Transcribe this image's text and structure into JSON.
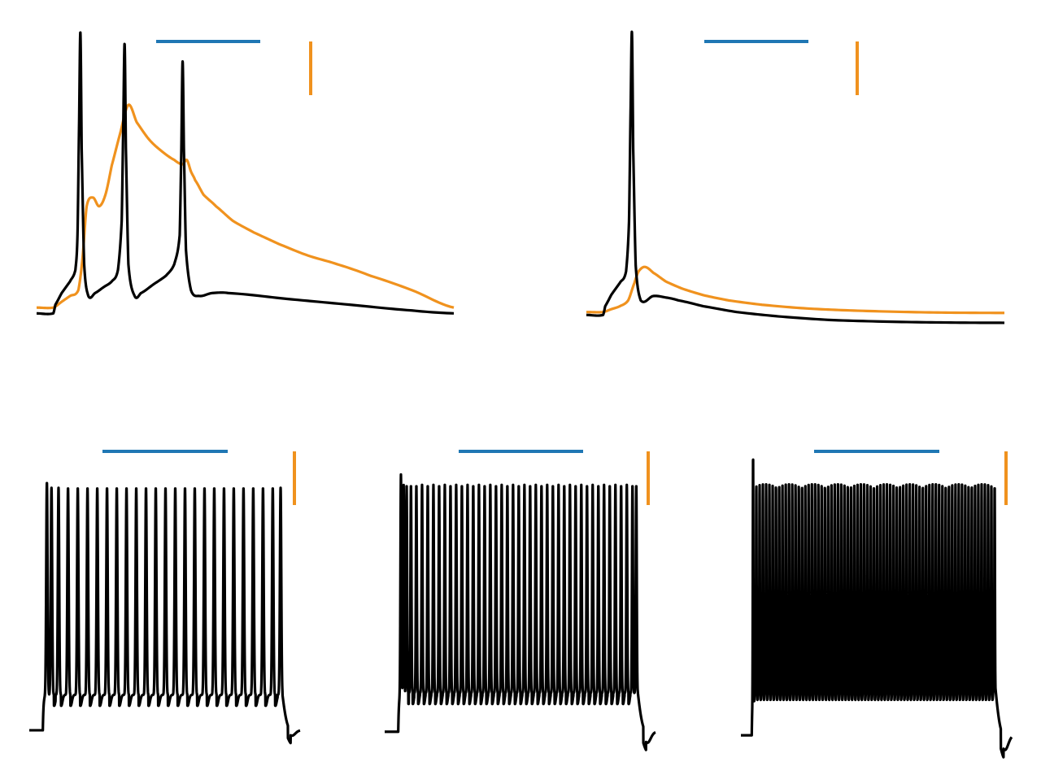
{
  "figure": {
    "colors": {
      "background": "#ffffff",
      "voltage": "#000000",
      "calcium": "#f0921e",
      "time_scalebar": "#1f77b4",
      "amplitude_scalebar": "#f0921e"
    }
  },
  "chart_data": [
    {
      "id": "burst",
      "type": "line",
      "title": "",
      "xlabel": "",
      "ylabel": "",
      "grid": false,
      "axes_visible": false,
      "x_range": [
        0,
        100
      ],
      "y_range": [
        0,
        100
      ],
      "scalebars": {
        "time_length": 25,
        "amplitude_length": 18
      },
      "series": [
        {
          "role": "voltage",
          "color": "#000000",
          "anchors": [
            [
              0,
              3
            ],
            [
              4,
              3
            ],
            [
              4.5,
              6
            ],
            [
              6,
              10
            ],
            [
              8,
              14
            ],
            [
              9.3,
              18
            ],
            [
              9.8,
              30
            ],
            [
              10.2,
              70
            ],
            [
              10.5,
              100
            ],
            [
              10.8,
              60
            ],
            [
              11.4,
              20
            ],
            [
              12.4,
              9
            ],
            [
              14,
              10
            ],
            [
              16,
              12
            ],
            [
              18,
              14
            ],
            [
              19.5,
              18
            ],
            [
              20.4,
              35
            ],
            [
              20.8,
              70
            ],
            [
              21.1,
              96
            ],
            [
              21.4,
              60
            ],
            [
              22,
              20
            ],
            [
              23.5,
              9
            ],
            [
              25,
              10
            ],
            [
              28,
              13
            ],
            [
              31,
              16
            ],
            [
              33,
              20
            ],
            [
              34.3,
              30
            ],
            [
              34.7,
              60
            ],
            [
              35,
              90
            ],
            [
              35.3,
              60
            ],
            [
              35.8,
              25
            ],
            [
              37,
              11
            ],
            [
              39,
              9
            ],
            [
              42,
              10
            ],
            [
              46,
              10
            ],
            [
              60,
              8
            ],
            [
              75,
              6
            ],
            [
              90,
              4
            ],
            [
              100,
              3
            ]
          ]
        },
        {
          "role": "calcium",
          "color": "#f0921e",
          "anchors": [
            [
              0,
              5
            ],
            [
              4,
              5
            ],
            [
              6,
              7
            ],
            [
              8,
              9
            ],
            [
              10,
              11
            ],
            [
              11,
              22
            ],
            [
              12,
              40
            ],
            [
              13.5,
              43
            ],
            [
              15,
              40
            ],
            [
              16.5,
              44
            ],
            [
              18,
              54
            ],
            [
              20,
              65
            ],
            [
              22,
              75
            ],
            [
              24,
              69
            ],
            [
              27,
              63
            ],
            [
              30,
              59
            ],
            [
              33,
              56
            ],
            [
              35,
              54.5
            ],
            [
              36,
              56
            ],
            [
              37,
              52
            ],
            [
              38,
              49
            ],
            [
              40,
              44
            ],
            [
              43,
              40
            ],
            [
              47,
              35
            ],
            [
              52,
              31
            ],
            [
              58,
              27
            ],
            [
              65,
              23
            ],
            [
              72,
              20
            ],
            [
              80,
              16
            ],
            [
              90,
              11
            ],
            [
              100,
              5
            ]
          ]
        }
      ]
    },
    {
      "id": "single",
      "type": "line",
      "title": "",
      "xlabel": "",
      "ylabel": "",
      "grid": false,
      "axes_visible": false,
      "x_range": [
        0,
        100
      ],
      "y_range": [
        0,
        100
      ],
      "scalebars": {
        "time_length": 25,
        "amplitude_length": 18
      },
      "series": [
        {
          "role": "voltage",
          "color": "#000000",
          "anchors": [
            [
              0,
              3
            ],
            [
              4,
              3
            ],
            [
              4.5,
              6
            ],
            [
              6,
              10
            ],
            [
              8,
              14
            ],
            [
              9.5,
              18
            ],
            [
              10.2,
              35
            ],
            [
              10.6,
              75
            ],
            [
              10.9,
              100
            ],
            [
              11.2,
              60
            ],
            [
              11.8,
              20
            ],
            [
              13,
              8
            ],
            [
              16,
              9.5
            ],
            [
              19,
              9
            ],
            [
              22,
              8
            ],
            [
              28,
              6
            ],
            [
              36,
              4
            ],
            [
              46,
              2.5
            ],
            [
              58,
              1.3
            ],
            [
              72,
              0.7
            ],
            [
              86,
              0.4
            ],
            [
              100,
              0.3
            ]
          ]
        },
        {
          "role": "calcium",
          "color": "#f0921e",
          "anchors": [
            [
              0,
              4
            ],
            [
              4,
              4
            ],
            [
              6,
              5
            ],
            [
              8,
              6
            ],
            [
              10,
              8
            ],
            [
              11.5,
              14
            ],
            [
              12.5,
              18
            ],
            [
              14,
              19.5
            ],
            [
              16,
              17.5
            ],
            [
              19,
              14.5
            ],
            [
              23,
              12
            ],
            [
              28,
              9.8
            ],
            [
              34,
              8
            ],
            [
              42,
              6.5
            ],
            [
              52,
              5.3
            ],
            [
              62,
              4.6
            ],
            [
              74,
              4.1
            ],
            [
              86,
              3.8
            ],
            [
              100,
              3.7
            ]
          ]
        }
      ]
    },
    {
      "id": "train-low",
      "type": "line",
      "title": "",
      "xlabel": "",
      "ylabel": "",
      "grid": false,
      "axes_visible": false,
      "x_range": [
        0,
        100
      ],
      "y_range": [
        0,
        100
      ],
      "scalebars": {
        "time_length": 25,
        "amplitude_length": 18
      },
      "series": [
        {
          "role": "voltage",
          "color": "#000000",
          "pulse_window": [
            5,
            93.5
          ],
          "rest": 3,
          "plateau": 16,
          "spike_trough": 12,
          "first_spike_peak": 94,
          "spike_peak": 92,
          "spike_width": 1.1,
          "spike_times": [
            6.5,
            8.2,
            10.8,
            14.3,
            17.9,
            21.5,
            25.1,
            28.7,
            32.3,
            35.9,
            39.5,
            43.1,
            46.7,
            50.3,
            53.9,
            57.5,
            61.1,
            64.7,
            68.3,
            71.9,
            75.5,
            79.1,
            82.7,
            86.3,
            89.9,
            92.8
          ],
          "post_dip": -2
        }
      ]
    },
    {
      "id": "train-mid",
      "type": "line",
      "title": "",
      "xlabel": "",
      "ylabel": "",
      "grid": false,
      "axes_visible": false,
      "x_range": [
        0,
        100
      ],
      "y_range": [
        0,
        100
      ],
      "scalebars": {
        "time_length": 25,
        "amplitude_length": 18
      },
      "series": [
        {
          "role": "voltage",
          "color": "#000000",
          "pulse_window": [
            5,
            93.5
          ],
          "rest": 3,
          "plateau": 17,
          "spike_trough": 13,
          "first_spike_peak": 96,
          "spike_peak": 92,
          "spike_width": 0.8,
          "spike_times": [
            6.0,
            7.0,
            8.1,
            9.7,
            11.7,
            13.8,
            15.9,
            18.0,
            20.1,
            22.2,
            24.3,
            26.4,
            28.5,
            30.6,
            32.7,
            34.8,
            36.9,
            39.0,
            41.1,
            43.2,
            45.3,
            47.4,
            49.5,
            51.6,
            53.7,
            55.8,
            57.9,
            60.0,
            62.1,
            64.2,
            66.3,
            68.4,
            70.5,
            72.6,
            74.7,
            76.8,
            78.9,
            81.0,
            83.1,
            85.2,
            87.3,
            89.4,
            91.5,
            92.9
          ],
          "post_dip": -4
        }
      ]
    },
    {
      "id": "train-high",
      "type": "line",
      "title": "",
      "xlabel": "",
      "ylabel": "",
      "grid": false,
      "axes_visible": false,
      "x_range": [
        0,
        100
      ],
      "y_range": [
        0,
        100
      ],
      "scalebars": {
        "time_length": 25,
        "amplitude_length": 18
      },
      "series": [
        {
          "role": "voltage",
          "color": "#000000",
          "pulse_window": [
            4,
            94
          ],
          "rest": 3,
          "plateau": 19,
          "spike_trough": 15,
          "first_spike_peak": 100,
          "spike_peak": 88,
          "spike_width": 0.45,
          "spike_count": 75,
          "post_dip": -5
        }
      ]
    }
  ]
}
